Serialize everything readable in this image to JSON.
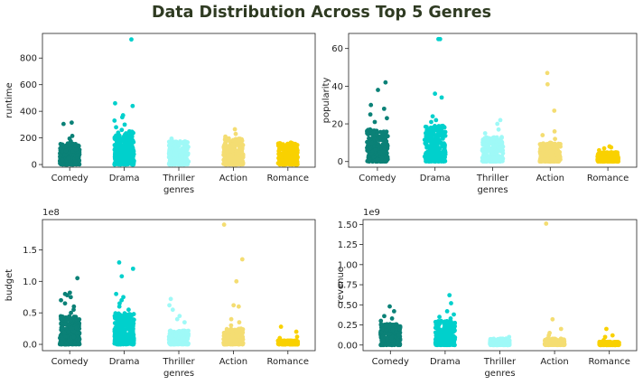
{
  "title": "Data Distribution Across Top 5 Genres",
  "colors": {
    "Comedy": "#0b8177",
    "Drama": "#00d0cc",
    "Thriller": "#9ff9f7",
    "Action": "#f4dd72",
    "Romance": "#f9d100"
  },
  "chart_data": [
    {
      "id": "runtime",
      "type": "scatter",
      "subtype": "strip",
      "xlabel": "genres",
      "ylabel": "runtime",
      "categories": [
        "Comedy",
        "Drama",
        "Thriller",
        "Action",
        "Romance"
      ],
      "ylim": [
        -20,
        985
      ],
      "yticks": [
        0,
        200,
        400,
        600,
        800
      ],
      "ytick_labels": [
        "0",
        "200",
        "400",
        "600",
        "800"
      ],
      "offset_label": "",
      "series": [
        {
          "category": "Comedy",
          "outliers": [
            315,
            305,
            215,
            195,
            175
          ],
          "core_range": [
            0,
            160
          ]
        },
        {
          "category": "Drama",
          "outliers": [
            940,
            460,
            440,
            370,
            355,
            330,
            300,
            280,
            260
          ],
          "core_range": [
            0,
            250
          ]
        },
        {
          "category": "Thriller",
          "outliers": [
            195,
            185
          ],
          "core_range": [
            0,
            175
          ]
        },
        {
          "category": "Action",
          "outliers": [
            265,
            230,
            210
          ],
          "core_range": [
            0,
            200
          ]
        },
        {
          "category": "Romance",
          "outliers": [
            165
          ],
          "core_range": [
            0,
            160
          ]
        }
      ]
    },
    {
      "id": "popularity",
      "type": "scatter",
      "subtype": "strip",
      "xlabel": "genres",
      "ylabel": "popularity",
      "categories": [
        "Comedy",
        "Drama",
        "Thriller",
        "Action",
        "Romance"
      ],
      "ylim": [
        -3,
        68
      ],
      "yticks": [
        0,
        20,
        40,
        60
      ],
      "ytick_labels": [
        "0",
        "20",
        "40",
        "60"
      ],
      "offset_label": "",
      "series": [
        {
          "category": "Comedy",
          "outliers": [
            42,
            38,
            30,
            28,
            25,
            23,
            21
          ],
          "core_range": [
            0,
            17
          ]
        },
        {
          "category": "Drama",
          "outliers": [
            65,
            65,
            36,
            34,
            24,
            22,
            21
          ],
          "core_range": [
            0,
            19
          ]
        },
        {
          "category": "Thriller",
          "outliers": [
            22,
            20,
            17,
            15
          ],
          "core_range": [
            0,
            13
          ]
        },
        {
          "category": "Action",
          "outliers": [
            47,
            41,
            27,
            16,
            14,
            12
          ],
          "core_range": [
            0,
            10
          ]
        },
        {
          "category": "Romance",
          "outliers": [
            8,
            7.5,
            7,
            6
          ],
          "core_range": [
            0,
            5
          ]
        }
      ]
    },
    {
      "id": "budget",
      "type": "scatter",
      "subtype": "strip",
      "xlabel": "genres",
      "ylabel": "budget",
      "categories": [
        "Comedy",
        "Drama",
        "Thriller",
        "Action",
        "Romance"
      ],
      "ylim": [
        -0.1,
        1.98
      ],
      "yticks": [
        0,
        0.5,
        1.0,
        1.5
      ],
      "ytick_labels": [
        "0.0",
        "0.5",
        "1.0",
        "1.5"
      ],
      "offset_label": "1e8",
      "series": [
        {
          "category": "Comedy",
          "outliers": [
            1.05,
            0.82,
            0.8,
            0.78,
            0.75,
            0.7,
            0.65,
            0.6,
            0.55,
            0.5
          ],
          "core_range": [
            0,
            0.45
          ]
        },
        {
          "category": "Drama",
          "outliers": [
            1.3,
            1.2,
            1.08,
            0.8,
            0.75,
            0.7,
            0.65,
            0.6,
            0.55
          ],
          "core_range": [
            0,
            0.5
          ]
        },
        {
          "category": "Thriller",
          "outliers": [
            0.72,
            0.62,
            0.55,
            0.45,
            0.4,
            0.35
          ],
          "core_range": [
            0,
            0.22
          ]
        },
        {
          "category": "Action",
          "outliers": [
            1.9,
            1.35,
            1.0,
            0.62,
            0.6,
            0.4,
            0.35,
            0.3
          ],
          "core_range": [
            0,
            0.25
          ]
        },
        {
          "category": "Romance",
          "outliers": [
            0.28,
            0.2,
            0.12,
            0.1
          ],
          "core_range": [
            0,
            0.06
          ]
        }
      ]
    },
    {
      "id": "revenue",
      "type": "scatter",
      "subtype": "strip",
      "xlabel": "genres",
      "ylabel": "revenue",
      "categories": [
        "Comedy",
        "Drama",
        "Thriller",
        "Action",
        "Romance"
      ],
      "ylim": [
        -0.07,
        1.56
      ],
      "yticks": [
        0,
        0.25,
        0.5,
        0.75,
        1.0,
        1.25,
        1.5
      ],
      "ytick_labels": [
        "0.00",
        "0.25",
        "0.50",
        "0.75",
        "1.00",
        "1.25",
        "1.50"
      ],
      "offset_label": "1e9",
      "series": [
        {
          "category": "Comedy",
          "outliers": [
            0.48,
            0.42,
            0.36,
            0.33,
            0.3
          ],
          "core_range": [
            0,
            0.26
          ]
        },
        {
          "category": "Drama",
          "outliers": [
            0.62,
            0.52,
            0.42,
            0.38,
            0.35,
            0.33
          ],
          "core_range": [
            0,
            0.3
          ]
        },
        {
          "category": "Thriller",
          "outliers": [
            0.1
          ],
          "core_range": [
            0,
            0.08
          ]
        },
        {
          "category": "Action",
          "outliers": [
            1.51,
            0.32,
            0.2,
            0.15,
            0.12
          ],
          "core_range": [
            0,
            0.08
          ]
        },
        {
          "category": "Romance",
          "outliers": [
            0.2,
            0.12,
            0.1,
            0.06
          ],
          "core_range": [
            0,
            0.04
          ]
        }
      ]
    }
  ]
}
